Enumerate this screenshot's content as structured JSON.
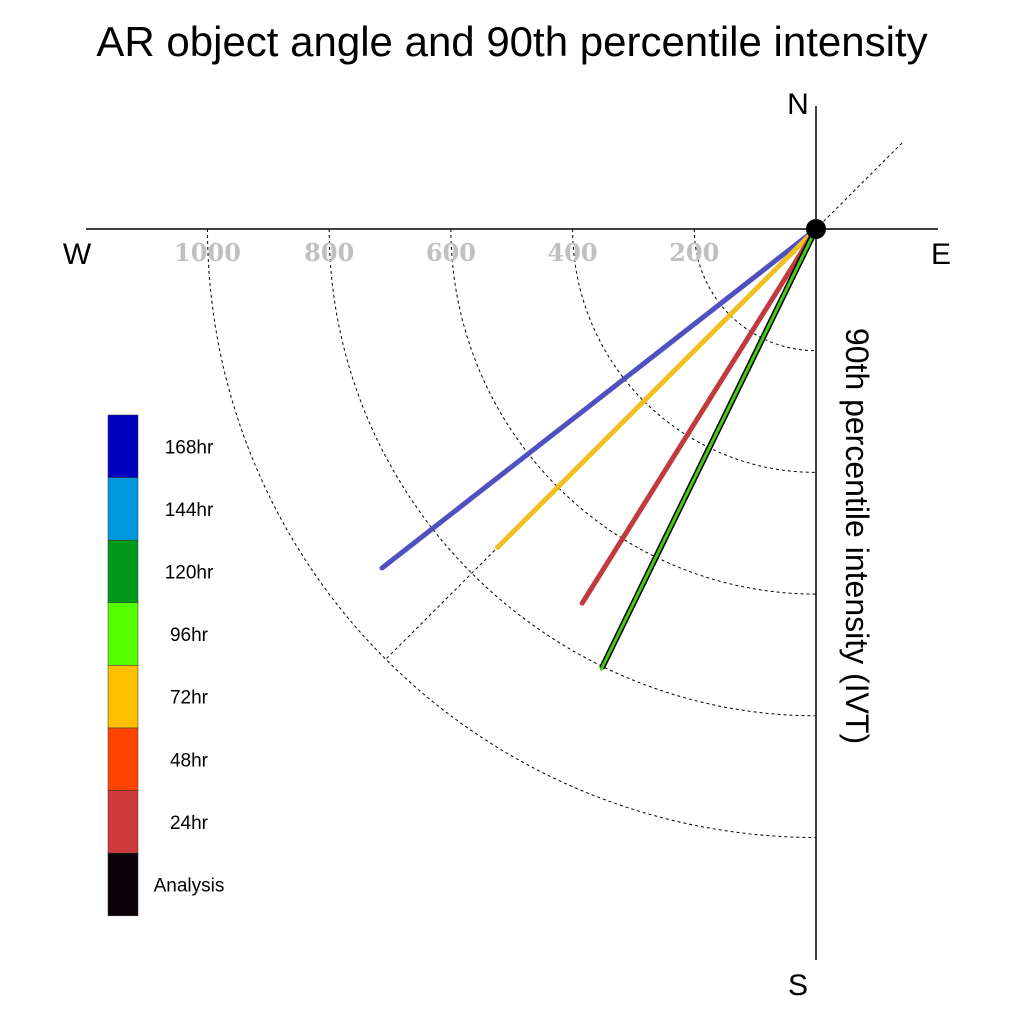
{
  "chart_data": {
    "type": "polar-line",
    "title": "AR object angle and 90th percentile intensity",
    "ylabel": "90th percentile intensity (IVT)",
    "compass": {
      "north": "N",
      "south": "S",
      "east": "E",
      "west": "W"
    },
    "radial_ticks": [
      200,
      400,
      600,
      800,
      1000
    ],
    "radial_tick_labels": [
      "200",
      "400",
      "600",
      "800",
      "1000"
    ],
    "rmax": 1200,
    "reference_angle_deg": 225,
    "series": [
      {
        "name": "168hr",
        "color": "#0000c0",
        "angle_deg": 232,
        "intensity": 905,
        "drawn": true,
        "line_color": "#5050c0"
      },
      {
        "name": "144hr",
        "color": "#0099dd",
        "drawn": false
      },
      {
        "name": "120hr",
        "color": "#009a1a",
        "drawn": false
      },
      {
        "name": "96hr",
        "color": "#55ff00",
        "angle_deg": 206,
        "intensity": 805,
        "drawn": true,
        "line_color": "#44cc11"
      },
      {
        "name": "72hr",
        "color": "#ffc000",
        "angle_deg": 225,
        "intensity": 740,
        "drawn": true,
        "line_color": "#f0c020"
      },
      {
        "name": "48hr",
        "color": "#ff4400",
        "drawn": false
      },
      {
        "name": "24hr",
        "color": "#cc3a3a",
        "angle_deg": 212,
        "intensity": 725,
        "drawn": true,
        "line_color": "#c03a40"
      },
      {
        "name": "Analysis",
        "color": "#0a0008",
        "angle_deg": 206,
        "intensity": 800,
        "drawn": true,
        "line_color": "#000000"
      }
    ]
  }
}
